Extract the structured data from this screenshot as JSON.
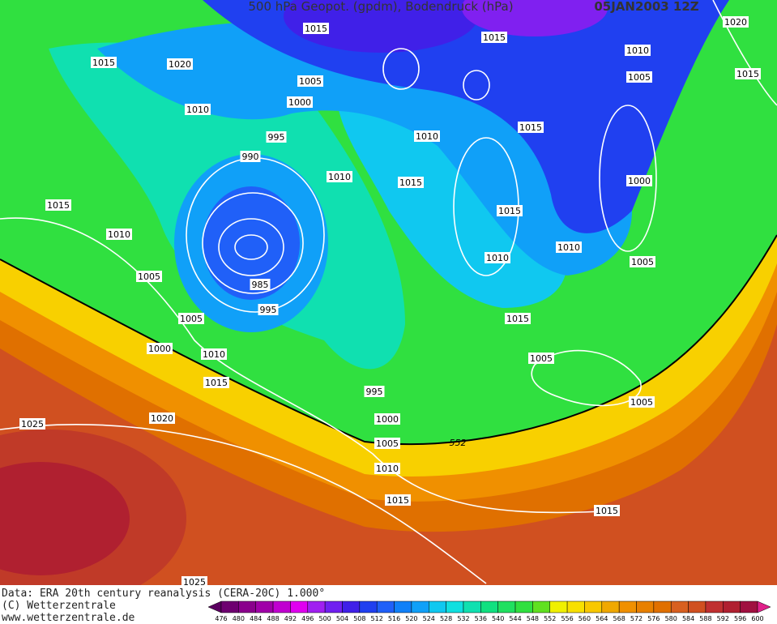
{
  "header": {
    "title": "500 hPa Geopot. (gpdm), Bodendruck (hPa)",
    "date": "05JAN2003 12Z"
  },
  "footer": {
    "source": "Data: ERA 20th century reanalysis (CERA-20C) 1.000°",
    "copyright": "(C) Wetterzentrale",
    "url": "www.wetterzentrale.de"
  },
  "contour_labels": [
    "1015",
    "1015",
    "1020",
    "1015",
    "1020",
    "1010",
    "1015",
    "1005",
    "1005",
    "1000",
    "1010",
    "1010",
    "1015",
    "995",
    "990",
    "1010",
    "1015",
    "1000",
    "1015",
    "1015",
    "1010",
    "1010",
    "1010",
    "1005",
    "1005",
    "985",
    "995",
    "1015",
    "1005",
    "1000",
    "1010",
    "1005",
    "1015",
    "995",
    "1005",
    "1025",
    "1020",
    "1000",
    "1005",
    "1010",
    "1015",
    "1015",
    "1025"
  ],
  "height_label": "552",
  "legend": {
    "levels": [
      476,
      480,
      484,
      488,
      492,
      496,
      500,
      504,
      508,
      512,
      516,
      520,
      524,
      528,
      532,
      536,
      540,
      544,
      548,
      552,
      556,
      560,
      564,
      568,
      572,
      576,
      580,
      584,
      588,
      592,
      596,
      600
    ],
    "colors": [
      "#5a0060",
      "#6e0070",
      "#8a008c",
      "#a000a8",
      "#c000d0",
      "#e000f0",
      "#a020f0",
      "#7020f0",
      "#4020e8",
      "#2040f0",
      "#2060f8",
      "#1080f8",
      "#10a0f8",
      "#10c8f0",
      "#10e0e0",
      "#10e0b0",
      "#10e080",
      "#20e060",
      "#30e040",
      "#60e020",
      "#f0f000",
      "#f8e000",
      "#f8c800",
      "#f0a800",
      "#f09000",
      "#e88000",
      "#e07000",
      "#d86020",
      "#d05020",
      "#c03030",
      "#b02030",
      "#a01040",
      "#e0208a"
    ]
  }
}
